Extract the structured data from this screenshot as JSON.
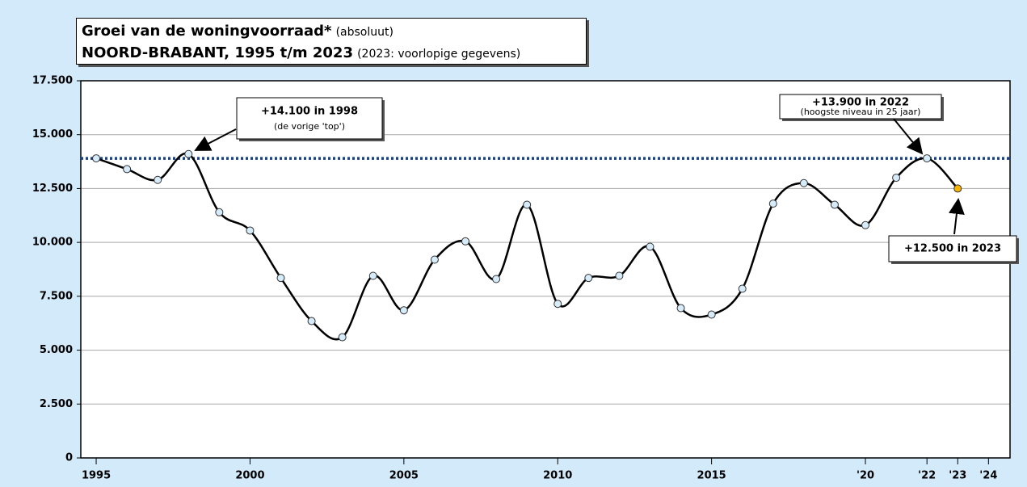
{
  "chart_data": {
    "type": "line",
    "title": {
      "main": "Groei van de woningvoorraad*",
      "note": "(absoluut)"
    },
    "subtitle": {
      "main": "NOORD-BRABANT,  1995 t/m 2023",
      "note": "(2023: voorlopige gegevens)"
    },
    "x": [
      1995,
      1996,
      1997,
      1998,
      1999,
      2000,
      2001,
      2002,
      2003,
      2004,
      2005,
      2006,
      2007,
      2008,
      2009,
      2010,
      2011,
      2012,
      2013,
      2014,
      2015,
      2016,
      2017,
      2018,
      2019,
      2020,
      2021,
      2022,
      2023
    ],
    "series": [
      {
        "color": "#000000",
        "values": [
          13900,
          13400,
          12900,
          14100,
          11400,
          10550,
          8350,
          6350,
          5600,
          8450,
          6850,
          9200,
          10050,
          8300,
          11750,
          7150,
          8350,
          8450,
          9800,
          6950,
          6650,
          7850,
          11800,
          12750,
          11750,
          10800,
          13000,
          13900,
          12500
        ],
        "marker_colors": [
          "#d6ecfa",
          "#d6ecfa",
          "#d6ecfa",
          "#d6ecfa",
          "#d6ecfa",
          "#d6ecfa",
          "#d6ecfa",
          "#d6ecfa",
          "#d6ecfa",
          "#d6ecfa",
          "#d6ecfa",
          "#d6ecfa",
          "#d6ecfa",
          "#d6ecfa",
          "#d6ecfa",
          "#d6ecfa",
          "#d6ecfa",
          "#d6ecfa",
          "#d6ecfa",
          "#d6ecfa",
          "#d6ecfa",
          "#d6ecfa",
          "#d6ecfa",
          "#d6ecfa",
          "#d6ecfa",
          "#d6ecfa",
          "#d6ecfa",
          "#d6ecfa",
          "#f5b400"
        ]
      }
    ],
    "reference_line": {
      "value": 13900,
      "color": "#1f3f7a"
    },
    "xlim": [
      1994.5,
      2024.7
    ],
    "xticks": [
      1995,
      2000,
      2005,
      2010,
      2015,
      {
        "value": 2020,
        "label": "'20"
      },
      {
        "value": 2022,
        "label": "'22"
      },
      {
        "value": 2023,
        "label": "'23"
      },
      {
        "value": 2024,
        "label": "'24"
      }
    ],
    "ylim": [
      0,
      17500
    ],
    "yticks": [
      {
        "value": 0,
        "label": "0"
      },
      {
        "value": 2500,
        "label": "2.500"
      },
      {
        "value": 5000,
        "label": "5.000"
      },
      {
        "value": 7500,
        "label": "7.500"
      },
      {
        "value": 10000,
        "label": "10.000"
      },
      {
        "value": 12500,
        "label": "12.500"
      },
      {
        "value": 15000,
        "label": "15.000"
      },
      {
        "value": 17500,
        "label": "17.500"
      }
    ],
    "grid": true,
    "annotations": [
      {
        "text": "+14.100 in 1998",
        "subtext": "(de vorige 'top')"
      },
      {
        "text": "+13.900 in 2022",
        "subtext": "(hoogste niveau in 25 jaar)"
      },
      {
        "text": "+12.500 in 2023"
      }
    ]
  }
}
